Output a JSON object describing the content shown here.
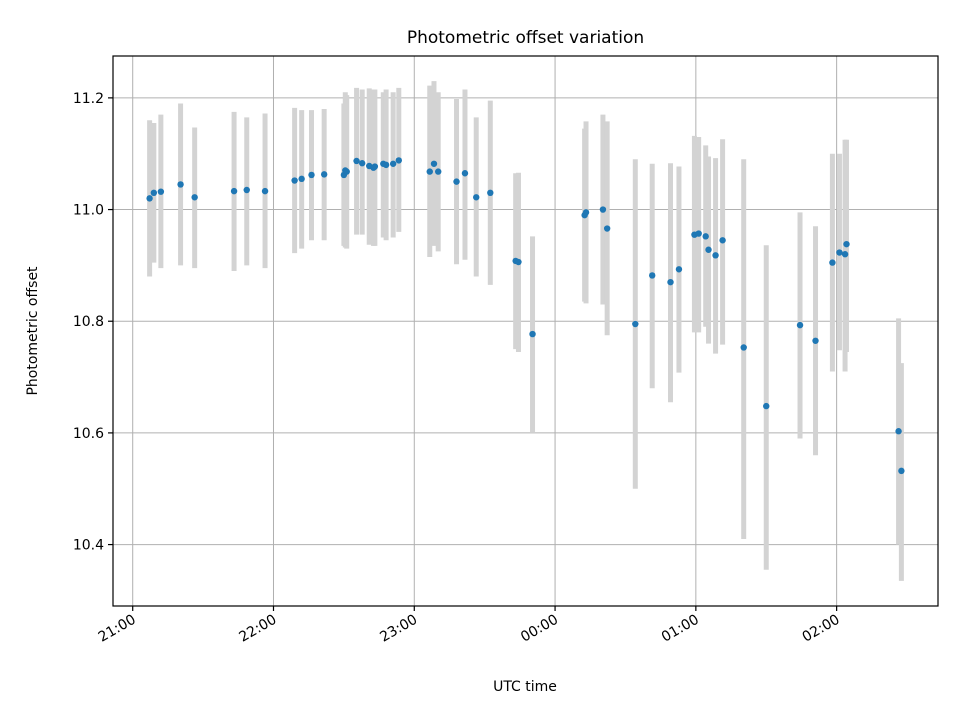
{
  "chart_data": {
    "type": "scatter",
    "title": "Photometric offset variation",
    "xlabel": "UTC time",
    "ylabel": "Photometric offset",
    "x_unit": "hours (UTC, continuing past midnight)",
    "xlim": [
      20.86,
      26.72
    ],
    "ylim": [
      10.29,
      11.275
    ],
    "grid": true,
    "x_tick_values": [
      21,
      22,
      23,
      24,
      25,
      26
    ],
    "x_tick_labels": [
      "21:00",
      "22:00",
      "23:00",
      "00:00",
      "01:00",
      "02:00"
    ],
    "y_tick_values": [
      10.4,
      10.6,
      10.8,
      11.0,
      11.2
    ],
    "y_tick_labels": [
      "10.4",
      "10.6",
      "10.8",
      "11.0",
      "11.2"
    ],
    "colors": {
      "points": "#1f77b4",
      "error_bars": "#d3d3d3",
      "grid": "#b0b0b0"
    },
    "series": [
      {
        "x": [
          21.12,
          21.15,
          21.2,
          21.34,
          21.44,
          21.72,
          21.81,
          21.94,
          22.15,
          22.2,
          22.27,
          22.36,
          22.5,
          22.51,
          22.52,
          22.59,
          22.63,
          22.68,
          22.71,
          22.72,
          22.78,
          22.8,
          22.85,
          22.89,
          23.11,
          23.14,
          23.17,
          23.3,
          23.36,
          23.44,
          23.54,
          23.72,
          23.74,
          23.84,
          24.21,
          24.22,
          24.34,
          24.37,
          24.57,
          24.69,
          24.82,
          24.88,
          24.99,
          25.02,
          25.07,
          25.09,
          25.14,
          25.19,
          25.34,
          25.5,
          25.74,
          25.85,
          25.97,
          26.02,
          26.06,
          26.07,
          26.44,
          26.46
        ],
        "y": [
          11.02,
          11.03,
          11.032,
          11.045,
          11.022,
          11.033,
          11.035,
          11.033,
          11.052,
          11.055,
          11.062,
          11.063,
          11.062,
          11.07,
          11.068,
          11.087,
          11.083,
          11.078,
          11.075,
          11.077,
          11.082,
          11.08,
          11.082,
          11.088,
          11.068,
          11.082,
          11.068,
          11.05,
          11.065,
          11.022,
          11.03,
          10.908,
          10.906,
          10.777,
          10.99,
          10.995,
          11.0,
          10.966,
          10.795,
          10.882,
          10.87,
          10.893,
          10.955,
          10.957,
          10.952,
          10.928,
          10.918,
          10.945,
          10.753,
          10.648,
          10.793,
          10.765,
          10.905,
          10.923,
          10.92,
          10.938,
          10.603,
          10.532
        ],
        "y_low": [
          10.88,
          10.905,
          10.895,
          10.9,
          10.895,
          10.89,
          10.9,
          10.895,
          10.922,
          10.93,
          10.945,
          10.945,
          10.935,
          10.932,
          10.93,
          10.955,
          10.955,
          10.937,
          10.935,
          10.935,
          10.95,
          10.945,
          10.95,
          10.96,
          10.915,
          10.935,
          10.925,
          10.902,
          10.91,
          10.88,
          10.865,
          10.75,
          10.745,
          10.6,
          10.835,
          10.832,
          10.83,
          10.775,
          10.5,
          10.68,
          10.655,
          10.708,
          10.78,
          10.78,
          10.79,
          10.76,
          10.742,
          10.758,
          10.41,
          10.355,
          10.59,
          10.56,
          10.71,
          10.748,
          10.71,
          10.745,
          10.4,
          10.335
        ],
        "y_high": [
          11.16,
          11.155,
          11.17,
          11.19,
          11.147,
          11.175,
          11.165,
          11.172,
          11.182,
          11.178,
          11.178,
          11.18,
          11.19,
          11.21,
          11.205,
          11.218,
          11.215,
          11.217,
          11.215,
          11.215,
          11.21,
          11.215,
          11.21,
          11.218,
          11.222,
          11.23,
          11.21,
          11.198,
          11.215,
          11.165,
          11.195,
          11.065,
          11.066,
          10.952,
          11.145,
          11.158,
          11.17,
          11.158,
          11.09,
          11.082,
          11.083,
          11.077,
          11.132,
          11.13,
          11.115,
          11.095,
          11.092,
          11.126,
          11.09,
          10.936,
          10.995,
          10.97,
          11.1,
          11.1,
          11.125,
          11.125,
          10.805,
          10.725
        ]
      }
    ]
  }
}
